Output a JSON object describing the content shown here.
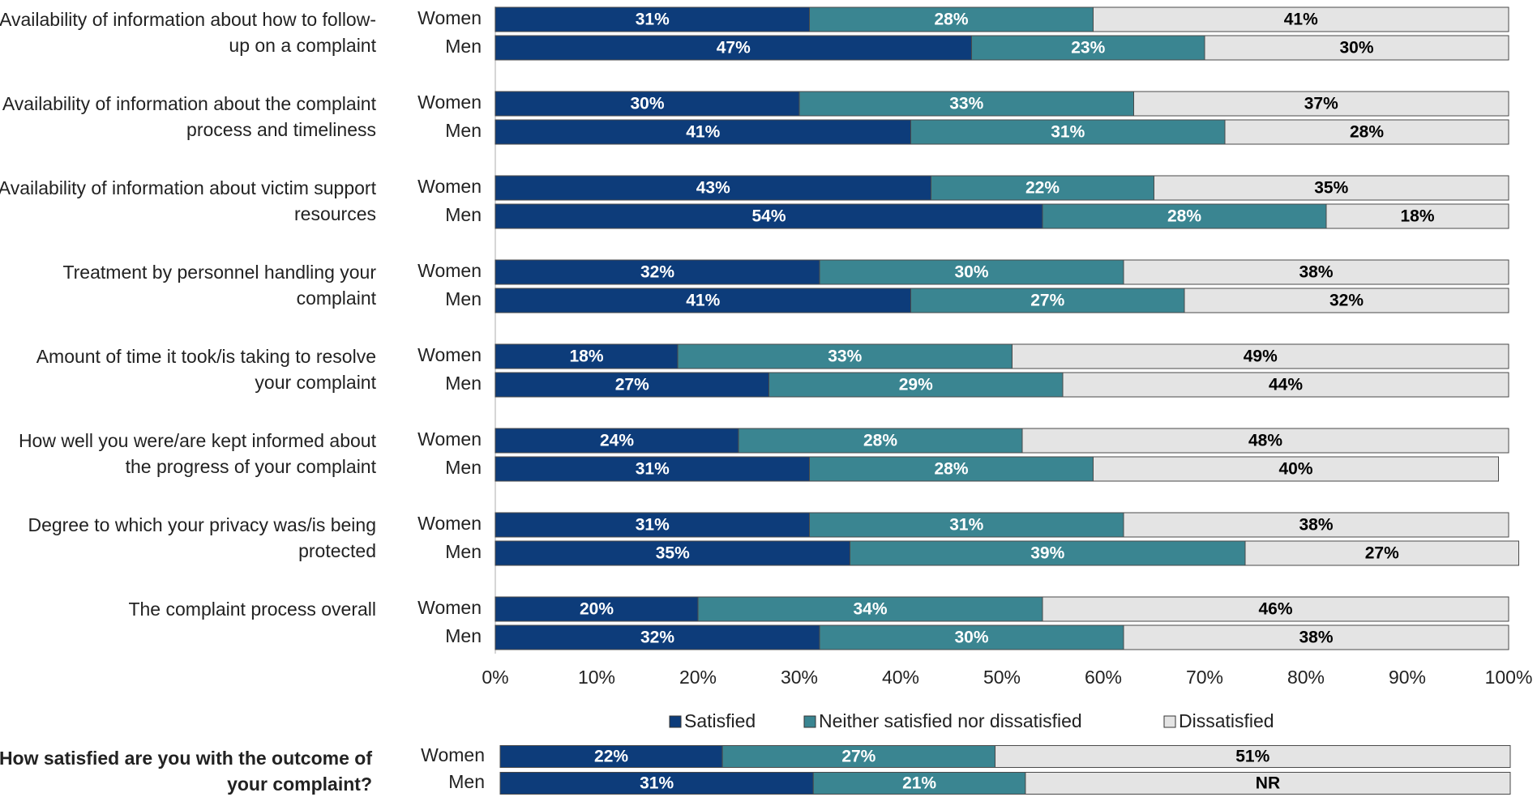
{
  "chart_data": [
    {
      "type": "stacked_barh",
      "categories": [
        "Availability of information about how to follow-up on a complaint",
        "Availability of information about the complaint process and timeliness",
        "Availability of information about victim support resources",
        "Treatment by personnel handling your complaint",
        "Amount of time it took/is taking to resolve your complaint",
        "How well you were/are kept informed about the progress of your complaint",
        "Degree to which your privacy was/is being protected",
        "The complaint process overall"
      ],
      "groups": [
        "Women",
        "Men"
      ],
      "series": [
        {
          "name": "Satisfied",
          "color": "#0d3c7a",
          "label_color": "#ffffff",
          "values": [
            [
              31,
              47
            ],
            [
              30,
              41
            ],
            [
              43,
              54
            ],
            [
              32,
              41
            ],
            [
              18,
              27
            ],
            [
              24,
              31
            ],
            [
              31,
              35
            ],
            [
              20,
              32
            ]
          ],
          "value_labels": [
            [
              "31%",
              "47%"
            ],
            [
              "30%",
              "41%"
            ],
            [
              "43%",
              "54%"
            ],
            [
              "32%",
              "41%"
            ],
            [
              "18%",
              "27%"
            ],
            [
              "24%",
              "31%"
            ],
            [
              "31%",
              "35%"
            ],
            [
              "20%",
              "32%"
            ]
          ]
        },
        {
          "name": "Neither satisfied nor dissatisfied",
          "color": "#3a8591",
          "label_color": "#ffffff",
          "values": [
            [
              28,
              23
            ],
            [
              33,
              31
            ],
            [
              22,
              28
            ],
            [
              30,
              27
            ],
            [
              33,
              29
            ],
            [
              28,
              28
            ],
            [
              31,
              39
            ],
            [
              34,
              30
            ]
          ],
          "value_labels": [
            [
              "28%",
              "23%"
            ],
            [
              "33%",
              "31%"
            ],
            [
              "22%",
              "28%"
            ],
            [
              "30%",
              "27%"
            ],
            [
              "33%",
              "29%"
            ],
            [
              "28%",
              "28%"
            ],
            [
              "31%",
              "39%"
            ],
            [
              "34%",
              "30%"
            ]
          ]
        },
        {
          "name": "Dissatisfied",
          "color": "#e4e4e4",
          "label_color": "#000000",
          "values": [
            [
              41,
              30
            ],
            [
              37,
              28
            ],
            [
              35,
              18
            ],
            [
              38,
              32
            ],
            [
              49,
              44
            ],
            [
              48,
              40
            ],
            [
              38,
              27
            ],
            [
              46,
              38
            ]
          ],
          "value_labels": [
            [
              "41%",
              "30%"
            ],
            [
              "37%",
              "28%"
            ],
            [
              "35%",
              "18%"
            ],
            [
              "38%",
              "32%"
            ],
            [
              "49%",
              "44%"
            ],
            [
              "48%",
              "40%"
            ],
            [
              "38%",
              "27%"
            ],
            [
              "46%",
              "38%"
            ]
          ]
        }
      ],
      "xlim": [
        0,
        100
      ],
      "xticks": [
        {
          "value": 0,
          "label": "0%"
        },
        {
          "value": 10,
          "label": "10%"
        },
        {
          "value": 20,
          "label": "20%"
        },
        {
          "value": 30,
          "label": "30%"
        },
        {
          "value": 40,
          "label": "40%"
        },
        {
          "value": 50,
          "label": "50%"
        },
        {
          "value": 60,
          "label": "60%"
        },
        {
          "value": 70,
          "label": "70%"
        },
        {
          "value": 80,
          "label": "80%"
        },
        {
          "value": 90,
          "label": "90%"
        },
        {
          "value": 100,
          "label": "100%"
        }
      ],
      "legend": "bottom"
    },
    {
      "type": "stacked_barh",
      "title": "How satisfied are you with the outcome of your complaint?",
      "categories": [
        "Women",
        "Men"
      ],
      "xlim": [
        0,
        100
      ],
      "series": [
        {
          "name": "Satisfied",
          "color": "#0d3c7a",
          "label_color": "#ffffff",
          "values": [
            22,
            31
          ],
          "value_labels": [
            "22%",
            "31%"
          ]
        },
        {
          "name": "Neither satisfied nor dissatisfied",
          "color": "#3a8591",
          "label_color": "#ffffff",
          "values": [
            27,
            21
          ],
          "value_labels": [
            "27%",
            "21%"
          ]
        },
        {
          "name": "Dissatisfied",
          "color": "#e4e4e4",
          "label_color": "#000000",
          "values": [
            51,
            48
          ],
          "value_labels": [
            "51%",
            "NR"
          ]
        }
      ]
    }
  ]
}
